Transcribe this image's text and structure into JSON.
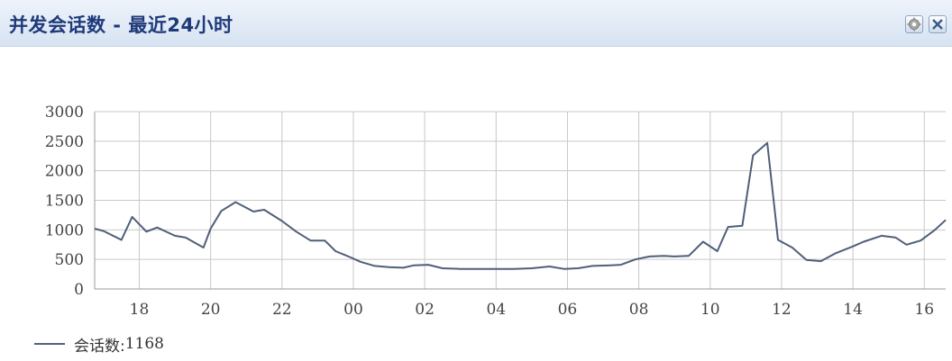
{
  "header": {
    "title": "并发会话数 - 最近24小时",
    "settings_icon": "gear-icon",
    "close_icon": "close-icon"
  },
  "legend": {
    "label": "会话数:",
    "value": "1168"
  },
  "colors": {
    "line": "#4f5f79",
    "grid": "#c8c8c8",
    "header_title": "#1f3a7a",
    "header_bg": "#d7e3f2"
  },
  "chart_data": {
    "type": "line",
    "title": "",
    "xlabel": "",
    "ylabel": "",
    "ylim": [
      0,
      3000
    ],
    "yticks": [
      0,
      500,
      1000,
      1500,
      2000,
      2500,
      3000
    ],
    "xtick_labels": [
      "18",
      "20",
      "22",
      "00",
      "02",
      "04",
      "06",
      "08",
      "10",
      "12",
      "14",
      "16"
    ],
    "xtick_hours": [
      18,
      20,
      22,
      24,
      26,
      28,
      30,
      32,
      34,
      36,
      38,
      40
    ],
    "x_range_hours": [
      16.75,
      40.6
    ],
    "grid": true,
    "legend_position": "bottom-left",
    "series": [
      {
        "name": "会话数",
        "x": [
          16.75,
          17.0,
          17.5,
          17.8,
          18.2,
          18.5,
          19.0,
          19.3,
          19.8,
          20.0,
          20.3,
          20.7,
          21.2,
          21.5,
          22.0,
          22.4,
          22.8,
          23.2,
          23.5,
          23.9,
          24.2,
          24.6,
          25.0,
          25.4,
          25.7,
          26.1,
          26.5,
          27.0,
          27.5,
          28.0,
          28.5,
          29.0,
          29.5,
          29.9,
          30.3,
          30.7,
          31.2,
          31.5,
          31.9,
          32.3,
          32.7,
          33.0,
          33.4,
          33.8,
          34.2,
          34.5,
          34.9,
          35.2,
          35.6,
          35.9,
          36.3,
          36.7,
          37.1,
          37.5,
          38.0,
          38.3,
          38.8,
          39.2,
          39.5,
          39.9,
          40.3,
          40.6
        ],
        "values": [
          1020,
          980,
          830,
          1220,
          970,
          1040,
          900,
          870,
          700,
          1020,
          1320,
          1470,
          1310,
          1340,
          1150,
          970,
          820,
          820,
          640,
          540,
          460,
          390,
          370,
          360,
          400,
          410,
          350,
          340,
          340,
          340,
          340,
          350,
          380,
          340,
          350,
          390,
          400,
          410,
          500,
          550,
          560,
          550,
          560,
          800,
          640,
          1050,
          1070,
          2260,
          2470,
          830,
          700,
          490,
          470,
          600,
          720,
          800,
          900,
          870,
          750,
          820,
          1000,
          1168
        ]
      }
    ]
  }
}
